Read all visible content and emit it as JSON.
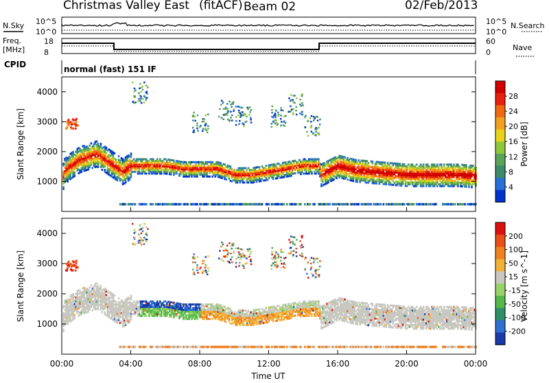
{
  "header": {
    "site": "Christmas Valley East",
    "mode": "(fitACF)",
    "beam": "Beam 02",
    "date": "02/Feb/2013"
  },
  "top_panels": {
    "nsky_label": "N.Sky",
    "nsky_ticks": [
      "10^5",
      "10^0"
    ],
    "nsearch_label": "N.Search",
    "nsearch_ticks": [
      "10^5",
      "10^0"
    ],
    "freq_label_1": "Freq.",
    "freq_label_2": "[MHz]",
    "freq_ticks": [
      "18",
      "8"
    ],
    "nave_label": "Nave",
    "nave_ticks": [
      "60",
      "0"
    ],
    "cpid_label": "CPID",
    "cpid_value": "normal (fast) 151 IF"
  },
  "colors": {
    "power_scale": [
      "#0033cc",
      "#2a6fd8",
      "#3d8a6a",
      "#5aa35a",
      "#8fc83a",
      "#e8d21a",
      "#f2a020",
      "#f06a10",
      "#e82010",
      "#d00000"
    ],
    "velocity_scale": [
      "#1a3aa8",
      "#2f6fd0",
      "#2f8f6a",
      "#55b84a",
      "#9bd26a",
      "#c8c8c0",
      "#f2b23a",
      "#f08020",
      "#e85018",
      "#dd1010"
    ]
  },
  "chart_data": [
    {
      "type": "heatmap",
      "panel": "power",
      "ylabel": "Slant Range [km]",
      "ylim": [
        0,
        4500
      ],
      "yticks": [
        1000,
        2000,
        3000,
        4000
      ],
      "colorbar_label": "Power [dB]",
      "colorbar_ticks": [
        "28",
        "24",
        "20",
        "16",
        "12",
        "8",
        "4"
      ],
      "xlim_hours": [
        0,
        24
      ],
      "ridge": [
        [
          0.1,
          1300
        ],
        [
          0.5,
          1500
        ],
        [
          1,
          1700
        ],
        [
          2,
          1900
        ],
        [
          3,
          1500
        ],
        [
          3.5,
          1300
        ],
        [
          4,
          1500
        ],
        [
          5,
          1500
        ],
        [
          6,
          1500
        ],
        [
          7,
          1400
        ],
        [
          8,
          1400
        ],
        [
          9,
          1400
        ],
        [
          10,
          1200
        ],
        [
          11,
          1200
        ],
        [
          12,
          1300
        ],
        [
          13,
          1400
        ],
        [
          14,
          1500
        ],
        [
          14.9,
          1500
        ],
        [
          15,
          1200
        ],
        [
          16,
          1500
        ],
        [
          17,
          1350
        ],
        [
          18,
          1300
        ],
        [
          19,
          1250
        ],
        [
          20,
          1200
        ],
        [
          21,
          1200
        ],
        [
          22,
          1200
        ],
        [
          23,
          1200
        ],
        [
          24,
          1150
        ]
      ],
      "bottom_band_km": 200,
      "scatter_blobs": [
        [
          4.5,
          4000
        ],
        [
          10.5,
          3200
        ],
        [
          12.5,
          3200
        ],
        [
          14.5,
          2900
        ],
        [
          9.5,
          3400
        ],
        [
          8,
          3000
        ],
        [
          13.5,
          3600
        ]
      ]
    },
    {
      "type": "heatmap",
      "panel": "velocity",
      "ylabel": "Slant Range [km]",
      "ylim": [
        0,
        4500
      ],
      "yticks": [
        1000,
        2000,
        3000,
        4000
      ],
      "colorbar_label": "Velocity [m s^-1]",
      "colorbar_ticks": [
        "200",
        "100",
        "50",
        "15",
        "-15",
        "-50",
        "-100",
        "-200"
      ],
      "xlim_hours": [
        0,
        24
      ],
      "xticks": [
        "00:00",
        "04:00",
        "08:00",
        "12:00",
        "16:00",
        "20:00",
        "00:00"
      ],
      "xlabel": "Time UT"
    }
  ]
}
